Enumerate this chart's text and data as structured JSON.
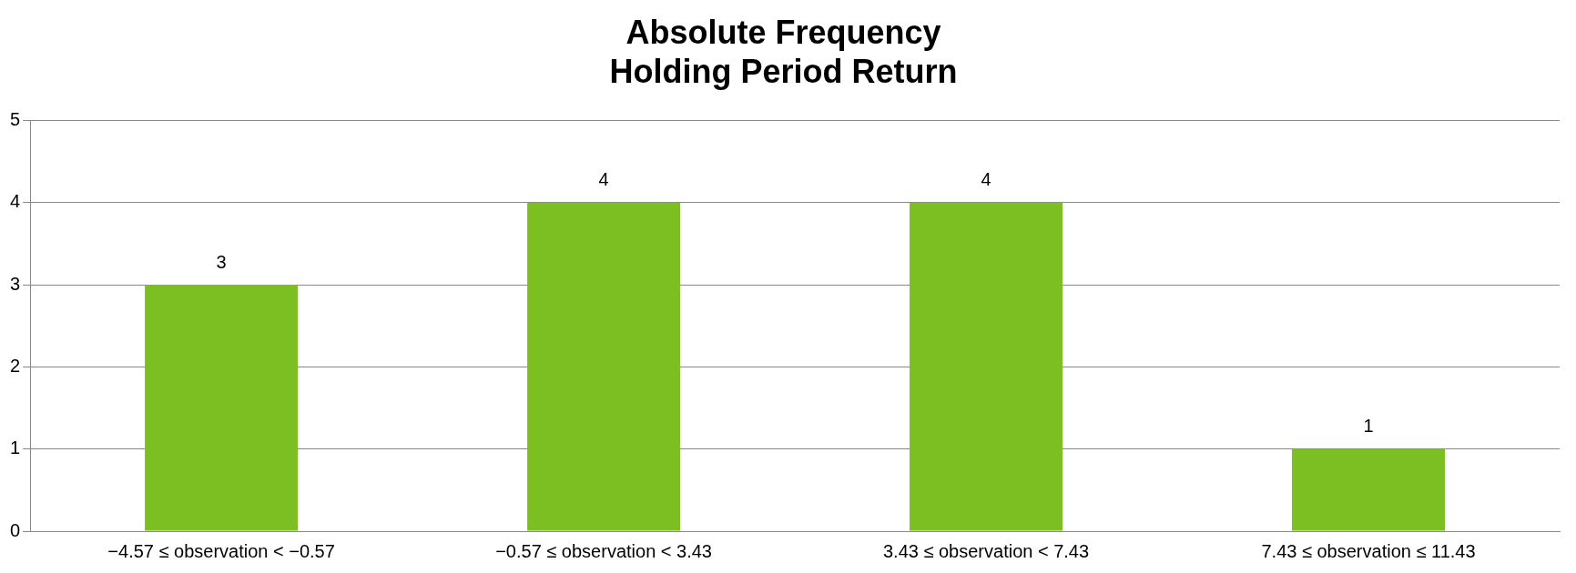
{
  "chart_data": {
    "type": "bar",
    "title": "Absolute Frequency\nHolding Period Return",
    "categories": [
      "−4.57 ≤ observation < −0.57",
      "−0.57 ≤ observation < 3.43",
      "3.43 ≤ observation < 7.43",
      "7.43 ≤ observation ≤ 11.43"
    ],
    "values": [
      3,
      4,
      4,
      1
    ],
    "color": "#7bbf22",
    "ylim": [
      0,
      5
    ],
    "yticks": [
      0,
      1,
      2,
      3,
      4,
      5
    ],
    "grid": "y",
    "data_labels": true,
    "legend": false
  }
}
